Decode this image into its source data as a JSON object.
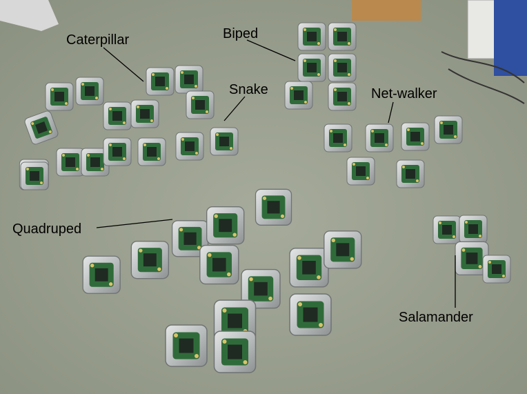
{
  "labels": {
    "caterpillar": "Caterpillar",
    "biped": "Biped",
    "snake": "Snake",
    "net_walker": "Net-walker",
    "quadruped": "Quadruped",
    "salamander": "Salamander"
  },
  "colors": {
    "carpet": "#9aa08f",
    "module_frame": "#c8cbcc",
    "circuit_board": "#2f6b3a",
    "label_text": "#000000"
  }
}
